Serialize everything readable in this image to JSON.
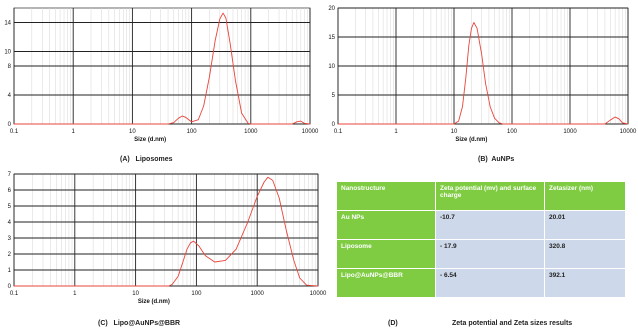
{
  "chart_data": [
    {
      "type": "line",
      "title": "",
      "xlabel": "Size (d.nm)",
      "ylabel": "",
      "xscale": "log",
      "xlim": [
        0.1,
        10000
      ],
      "ylim": [
        0,
        16
      ],
      "xticks": [
        "0.1",
        "1",
        "10",
        "100",
        "1000",
        "10000"
      ],
      "yticks": [
        "0",
        "4",
        "8",
        "10",
        "14"
      ],
      "series": [
        {
          "color": "#e8463c",
          "points": [
            [
              0.1,
              0
            ],
            [
              40,
              0
            ],
            [
              50,
              0.2
            ],
            [
              60,
              0.8
            ],
            [
              70,
              1.1
            ],
            [
              80,
              0.9
            ],
            [
              100,
              0.3
            ],
            [
              130,
              0.6
            ],
            [
              160,
              2.5
            ],
            [
              200,
              6.5
            ],
            [
              250,
              11.5
            ],
            [
              300,
              14.5
            ],
            [
              340,
              15.3
            ],
            [
              380,
              14.6
            ],
            [
              450,
              11
            ],
            [
              550,
              6
            ],
            [
              700,
              1.5
            ],
            [
              900,
              0.1
            ],
            [
              1000,
              0
            ],
            [
              5000,
              0
            ],
            [
              6000,
              0.3
            ],
            [
              7000,
              0.4
            ],
            [
              8000,
              0.1
            ],
            [
              10000,
              0
            ]
          ]
        }
      ],
      "caption": "(A)   Liposomes"
    },
    {
      "type": "line",
      "title": "",
      "xlabel": "Size (d.nm)",
      "ylabel": "",
      "xscale": "log",
      "xlim": [
        0.1,
        10000
      ],
      "ylim": [
        0,
        20
      ],
      "xticks": [
        "0.1",
        "1",
        "10",
        "100",
        "1000",
        "10000"
      ],
      "yticks": [
        "0",
        "5",
        "10",
        "15",
        "20"
      ],
      "series": [
        {
          "color": "#e8463c",
          "points": [
            [
              0.1,
              0
            ],
            [
              10,
              0
            ],
            [
              12,
              0.5
            ],
            [
              14,
              3
            ],
            [
              16,
              8
            ],
            [
              18,
              13.5
            ],
            [
              20,
              16.5
            ],
            [
              22,
              17.5
            ],
            [
              25,
              16.5
            ],
            [
              30,
              12
            ],
            [
              35,
              7
            ],
            [
              42,
              3
            ],
            [
              50,
              1
            ],
            [
              60,
              0.2
            ],
            [
              70,
              0
            ],
            [
              4000,
              0
            ],
            [
              5000,
              0.7
            ],
            [
              6000,
              1.2
            ],
            [
              7000,
              0.9
            ],
            [
              8000,
              0.2
            ],
            [
              10000,
              0
            ]
          ]
        }
      ],
      "caption": "(B)  AuNPs"
    },
    {
      "type": "line",
      "title": "",
      "xlabel": "Size (d.nm)",
      "ylabel": "",
      "xscale": "log",
      "xlim": [
        0.1,
        10000
      ],
      "ylim": [
        0,
        7
      ],
      "xticks": [
        "0.1",
        "1",
        "10",
        "100",
        "1000",
        "10000"
      ],
      "yticks": [
        "0",
        "1",
        "2",
        "3",
        "4",
        "5",
        "6",
        "7"
      ],
      "series": [
        {
          "color": "#e8463c",
          "points": [
            [
              0.1,
              0
            ],
            [
              35,
              0
            ],
            [
              40,
              0.1
            ],
            [
              50,
              0.6
            ],
            [
              60,
              1.5
            ],
            [
              70,
              2.3
            ],
            [
              80,
              2.7
            ],
            [
              90,
              2.8
            ],
            [
              110,
              2.5
            ],
            [
              140,
              1.9
            ],
            [
              200,
              1.5
            ],
            [
              300,
              1.6
            ],
            [
              450,
              2.3
            ],
            [
              700,
              4
            ],
            [
              1000,
              5.6
            ],
            [
              1300,
              6.5
            ],
            [
              1500,
              6.8
            ],
            [
              1800,
              6.6
            ],
            [
              2300,
              5.5
            ],
            [
              3000,
              3.5
            ],
            [
              4000,
              1.6
            ],
            [
              5000,
              0.5
            ],
            [
              6500,
              0.05
            ],
            [
              10000,
              0
            ]
          ]
        }
      ],
      "caption": "(C)   Lipo@AuNPs@BBR"
    },
    {
      "type": "table",
      "caption_letter": "(D)",
      "caption": "Zeta potential and Zeta sizes results",
      "headers": [
        "Nanostructure",
        "Zeta    potential    (mv) and surface charge",
        "Zetasizer (nm)"
      ],
      "rows": [
        [
          "Au NPs",
          "-10.7",
          "20.01"
        ],
        [
          "Liposome",
          "- 17.9",
          "320.8"
        ],
        [
          "Lipo@AuNPs@BBR",
          "- 6.54",
          "392.1"
        ]
      ]
    }
  ]
}
